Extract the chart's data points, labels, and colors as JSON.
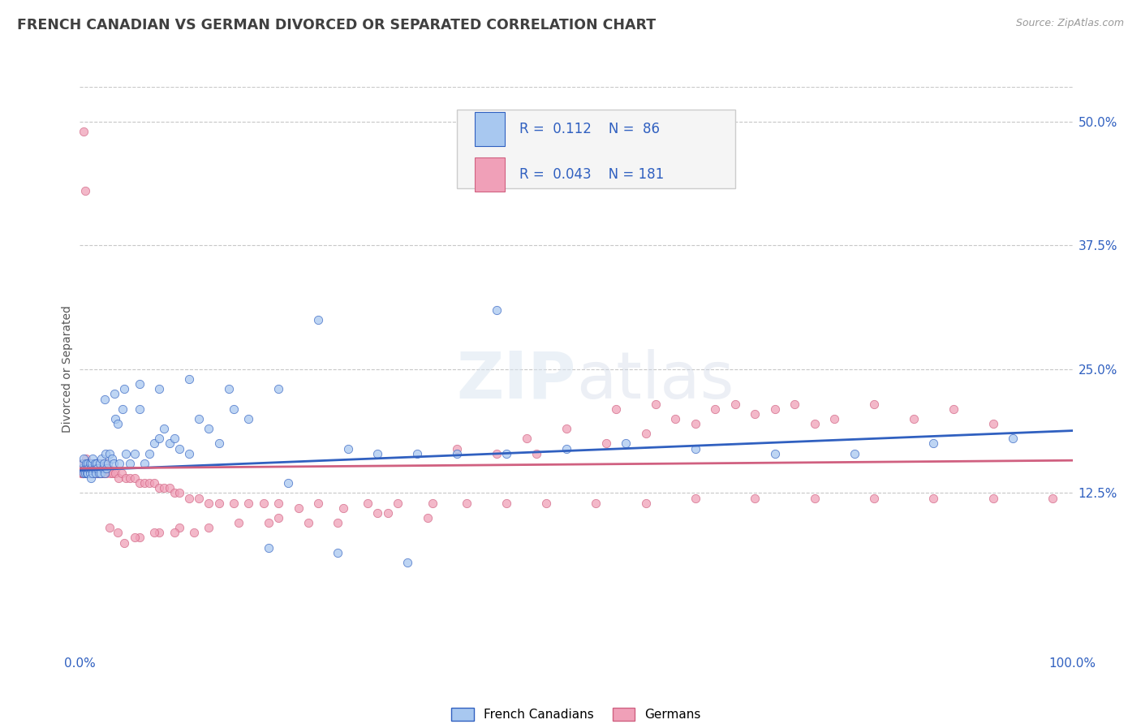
{
  "title": "FRENCH CANADIAN VS GERMAN DIVORCED OR SEPARATED CORRELATION CHART",
  "source_text": "Source: ZipAtlas.com",
  "ylabel": "Divorced or Separated",
  "xlim": [
    0.0,
    1.0
  ],
  "ylim": [
    -0.035,
    0.535
  ],
  "yticks_right": [
    0.125,
    0.25,
    0.375,
    0.5
  ],
  "ytick_labels_right": [
    "12.5%",
    "25.0%",
    "37.5%",
    "50.0%"
  ],
  "grid_color": "#c8c8c8",
  "background_color": "#ffffff",
  "watermark_text": "ZIPatlas",
  "color_blue": "#a8c8f0",
  "color_pink": "#f0a0b8",
  "line_color_blue": "#3060c0",
  "line_color_pink": "#d06080",
  "scatter_alpha": 0.75,
  "scatter_size": 55,
  "title_color": "#404040",
  "title_fontsize": 12.5,
  "axis_label_color": "#555555",
  "tick_color": "#3060c0",
  "blue_points_x": [
    0.002,
    0.003,
    0.004,
    0.004,
    0.005,
    0.005,
    0.006,
    0.007,
    0.007,
    0.008,
    0.008,
    0.009,
    0.01,
    0.01,
    0.011,
    0.011,
    0.012,
    0.013,
    0.013,
    0.014,
    0.015,
    0.016,
    0.016,
    0.017,
    0.018,
    0.019,
    0.02,
    0.021,
    0.022,
    0.023,
    0.024,
    0.025,
    0.026,
    0.027,
    0.028,
    0.03,
    0.032,
    0.034,
    0.036,
    0.038,
    0.04,
    0.043,
    0.046,
    0.05,
    0.055,
    0.06,
    0.065,
    0.07,
    0.075,
    0.08,
    0.085,
    0.09,
    0.095,
    0.1,
    0.11,
    0.12,
    0.13,
    0.14,
    0.155,
    0.17,
    0.19,
    0.21,
    0.24,
    0.27,
    0.3,
    0.34,
    0.38,
    0.43,
    0.49,
    0.55,
    0.62,
    0.7,
    0.78,
    0.86,
    0.94,
    0.025,
    0.035,
    0.045,
    0.06,
    0.08,
    0.11,
    0.15,
    0.2,
    0.26,
    0.33,
    0.42
  ],
  "blue_points_y": [
    0.15,
    0.155,
    0.145,
    0.16,
    0.15,
    0.145,
    0.155,
    0.15,
    0.145,
    0.155,
    0.145,
    0.15,
    0.155,
    0.145,
    0.15,
    0.14,
    0.155,
    0.145,
    0.16,
    0.15,
    0.155,
    0.15,
    0.145,
    0.155,
    0.15,
    0.145,
    0.155,
    0.145,
    0.16,
    0.15,
    0.155,
    0.145,
    0.165,
    0.15,
    0.155,
    0.165,
    0.16,
    0.155,
    0.2,
    0.195,
    0.155,
    0.21,
    0.165,
    0.155,
    0.165,
    0.21,
    0.155,
    0.165,
    0.175,
    0.18,
    0.19,
    0.175,
    0.18,
    0.17,
    0.165,
    0.2,
    0.19,
    0.175,
    0.21,
    0.2,
    0.07,
    0.135,
    0.3,
    0.17,
    0.165,
    0.165,
    0.165,
    0.165,
    0.17,
    0.175,
    0.17,
    0.165,
    0.165,
    0.175,
    0.18,
    0.22,
    0.225,
    0.23,
    0.235,
    0.23,
    0.24,
    0.23,
    0.23,
    0.065,
    0.055,
    0.31
  ],
  "pink_points_x": [
    0.001,
    0.001,
    0.002,
    0.002,
    0.003,
    0.003,
    0.004,
    0.004,
    0.005,
    0.005,
    0.006,
    0.006,
    0.007,
    0.007,
    0.008,
    0.008,
    0.009,
    0.009,
    0.01,
    0.01,
    0.011,
    0.011,
    0.012,
    0.012,
    0.013,
    0.013,
    0.014,
    0.014,
    0.015,
    0.015,
    0.016,
    0.016,
    0.017,
    0.017,
    0.018,
    0.018,
    0.019,
    0.019,
    0.02,
    0.02,
    0.021,
    0.022,
    0.023,
    0.024,
    0.025,
    0.027,
    0.029,
    0.031,
    0.033,
    0.036,
    0.039,
    0.042,
    0.046,
    0.05,
    0.055,
    0.06,
    0.065,
    0.07,
    0.075,
    0.08,
    0.085,
    0.09,
    0.095,
    0.1,
    0.11,
    0.12,
    0.13,
    0.14,
    0.155,
    0.17,
    0.185,
    0.2,
    0.22,
    0.24,
    0.265,
    0.29,
    0.32,
    0.355,
    0.39,
    0.43,
    0.47,
    0.52,
    0.57,
    0.62,
    0.68,
    0.74,
    0.8,
    0.86,
    0.92,
    0.98,
    0.6,
    0.64,
    0.68,
    0.72,
    0.76,
    0.8,
    0.84,
    0.88,
    0.92,
    0.54,
    0.58,
    0.62,
    0.66,
    0.7,
    0.74,
    0.45,
    0.49,
    0.53,
    0.57,
    0.38,
    0.42,
    0.46,
    0.31,
    0.35,
    0.26,
    0.3,
    0.2,
    0.23,
    0.16,
    0.19,
    0.13,
    0.1,
    0.115,
    0.08,
    0.095,
    0.06,
    0.075,
    0.045,
    0.055,
    0.03,
    0.038,
    0.02,
    0.025,
    0.015,
    0.018,
    0.012,
    0.009,
    0.011,
    0.006,
    0.008,
    0.004,
    0.005,
    0.002,
    0.003
  ],
  "pink_points_y": [
    0.15,
    0.145,
    0.155,
    0.145,
    0.15,
    0.145,
    0.155,
    0.145,
    0.15,
    0.145,
    0.155,
    0.145,
    0.15,
    0.145,
    0.155,
    0.145,
    0.15,
    0.145,
    0.155,
    0.145,
    0.15,
    0.145,
    0.155,
    0.145,
    0.15,
    0.145,
    0.155,
    0.145,
    0.15,
    0.145,
    0.155,
    0.145,
    0.15,
    0.145,
    0.155,
    0.145,
    0.15,
    0.145,
    0.155,
    0.145,
    0.15,
    0.145,
    0.15,
    0.145,
    0.15,
    0.145,
    0.15,
    0.145,
    0.145,
    0.145,
    0.14,
    0.145,
    0.14,
    0.14,
    0.14,
    0.135,
    0.135,
    0.135,
    0.135,
    0.13,
    0.13,
    0.13,
    0.125,
    0.125,
    0.12,
    0.12,
    0.115,
    0.115,
    0.115,
    0.115,
    0.115,
    0.115,
    0.11,
    0.115,
    0.11,
    0.115,
    0.115,
    0.115,
    0.115,
    0.115,
    0.115,
    0.115,
    0.115,
    0.12,
    0.12,
    0.12,
    0.12,
    0.12,
    0.12,
    0.12,
    0.2,
    0.21,
    0.205,
    0.215,
    0.2,
    0.215,
    0.2,
    0.21,
    0.195,
    0.21,
    0.215,
    0.195,
    0.215,
    0.21,
    0.195,
    0.18,
    0.19,
    0.175,
    0.185,
    0.17,
    0.165,
    0.165,
    0.105,
    0.1,
    0.095,
    0.105,
    0.1,
    0.095,
    0.095,
    0.095,
    0.09,
    0.09,
    0.085,
    0.085,
    0.085,
    0.08,
    0.085,
    0.075,
    0.08,
    0.09,
    0.085,
    0.155,
    0.155,
    0.15,
    0.155,
    0.15,
    0.145,
    0.15,
    0.16,
    0.155,
    0.49,
    0.43,
    0.15,
    0.145
  ],
  "blue_trend_x": [
    0.0,
    1.0
  ],
  "blue_trend_y": [
    0.148,
    0.188
  ],
  "pink_trend_x": [
    0.0,
    1.0
  ],
  "pink_trend_y": [
    0.15,
    0.158
  ]
}
